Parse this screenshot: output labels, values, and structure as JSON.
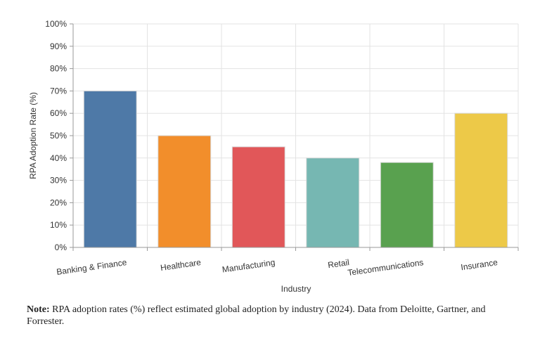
{
  "chart_data": {
    "type": "bar",
    "categories": [
      "Banking & Finance",
      "Healthcare",
      "Manufacturing",
      "Retail",
      "Telecommunications",
      "Insurance"
    ],
    "values": [
      70,
      50,
      45,
      40,
      38,
      60
    ],
    "colors": [
      "#4e79a7",
      "#f28e2b",
      "#e15759",
      "#76b7b2",
      "#59a14f",
      "#edc948"
    ],
    "xlabel": "Industry",
    "ylabel": "RPA Adoption Rate (%)",
    "ylim": [
      0,
      100
    ],
    "yticks": [
      "0%",
      "10%",
      "20%",
      "30%",
      "40%",
      "50%",
      "60%",
      "70%",
      "80%",
      "90%",
      "100%"
    ],
    "grid": true,
    "legend": "none"
  },
  "note": {
    "label": "Note:",
    "text": "RPA adoption rates (%) reflect estimated global adoption by industry (2024). Data from Deloitte, Gartner, and Forrester."
  }
}
